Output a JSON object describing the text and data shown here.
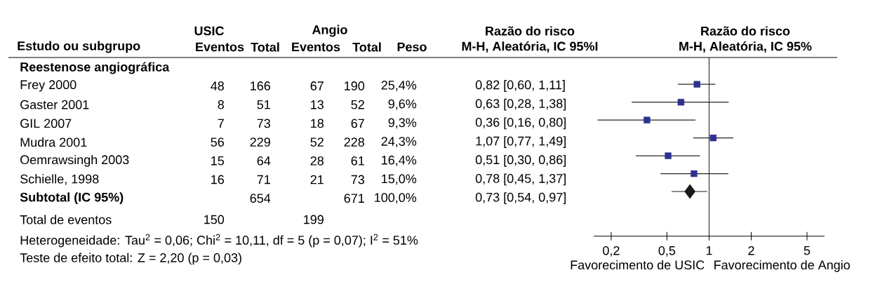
{
  "chart_data": [
    {
      "type": "other",
      "annotations": [
        "USIC",
        "Angio",
        "Razão do risco",
        "Estudo ou subgrupo",
        "Eventos",
        "Total",
        "Eventos",
        "Total",
        "Peso",
        "M-H, Aleatória, IC 95%I",
        "Reestenose angiográfica",
        "Frey 2000",
        "48",
        "166",
        "67",
        "190",
        "25,4%",
        "0,82 [0,60, 1,11]",
        "Gaster 2001",
        "8",
        "51",
        "13",
        "52",
        "9,6%",
        "0,63 [0,28, 1,38]",
        "GIL 2007",
        "7",
        "73",
        "18",
        "67",
        "9,3%",
        "0,36 [0,16, 0,80]",
        "Mudra 2001",
        "56",
        "229",
        "52",
        "228",
        "24,3%",
        "1,07 [0,77, 1,49]",
        "Oemrawsingh 2003",
        "15",
        "64",
        "28",
        "61",
        "16,4%",
        "0,51 [0,30, 0,86]",
        "Schielle, 1998",
        "16",
        "71",
        "21",
        "73",
        "15,0%",
        "0,78 [0,45, 1,37]",
        "Subtotal (IC 95%)",
        "654",
        "671",
        "100,0%",
        "0,73 [0,54, 0,97]",
        "Total de eventos",
        "150",
        "199",
        "Heterogeneidade: Tau$^{2}$ = 0,06; Chi$^{2}$ = 10,11, df = 5 (p = 0,07); I$^{2}$ = 51%",
        "Teste de efeito total: Z = 2,20 (p = 0,03)"
      ]
    },
    {
      "type": "scatter",
      "orientation": "horizontal",
      "title": "Razão do risco",
      "subtitle": "M-H, Aleatória, IC 95%",
      "categories": [
        null,
        null,
        null,
        null,
        null,
        null,
        null,
        null,
        null,
        null
      ],
      "log": "x",
      "xlim": [
        0.15,
        6.67
      ],
      "xticks": [
        {
          "value": 0.2,
          "label": "0,2"
        },
        {
          "value": 0.5,
          "label": "0,5"
        },
        1,
        2,
        5
      ],
      "ref_lines": [
        {
          "axis": "x",
          "value": 1,
          "color": "#1a1a1a"
        }
      ],
      "annotations": [
        "Favorecimento de USIC",
        "Favorecimento de Angio"
      ],
      "series": [
        {
          "color": "#2e3192",
          "marker": "square",
          "values": [
            null,
            0.82,
            0.63,
            0.36,
            1.07,
            0.51,
            0.78,
            null,
            null,
            null
          ],
          "errors": [
            null,
            [
              0.6,
              1.11
            ],
            [
              0.28,
              1.38
            ],
            [
              0.16,
              0.8
            ],
            [
              0.77,
              1.49
            ],
            [
              0.3,
              0.86
            ],
            [
              0.45,
              1.37
            ],
            null,
            null,
            null
          ]
        },
        {
          "color": "#1a1a1a",
          "marker": "diamond",
          "values": [
            null,
            null,
            null,
            null,
            null,
            null,
            null,
            0.73,
            null,
            null
          ],
          "errors": [
            null,
            null,
            null,
            null,
            null,
            null,
            null,
            [
              0.54,
              0.97
            ],
            null,
            null
          ]
        }
      ]
    }
  ]
}
